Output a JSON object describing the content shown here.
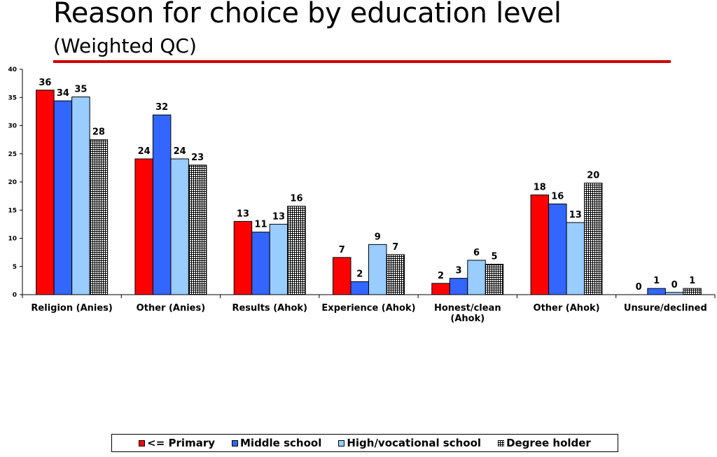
{
  "title": "Reason for choice by education level",
  "subtitle": "(Weighted QC)",
  "colors": {
    "title_rule": "#cc0000",
    "primary": "#ff0000",
    "middle": "#3366ff",
    "high": "#99ccff",
    "degree": "#ffffff"
  },
  "chart_data": {
    "type": "bar",
    "title": "Reason for choice by education level",
    "subtitle": "(Weighted QC)",
    "categories": [
      [
        "Religion (Anies)"
      ],
      [
        "Other (Anies)"
      ],
      [
        "Results (Ahok)"
      ],
      [
        "Experience (Ahok)"
      ],
      [
        "Honest/clean",
        "(Ahok)"
      ],
      [
        "Other (Ahok)"
      ],
      [
        "Unsure/declined"
      ]
    ],
    "series": [
      {
        "name": "<= Primary",
        "color": "#ff0000",
        "pattern": "solid",
        "values": [
          36.3,
          24.1,
          13.0,
          6.6,
          2.0,
          17.7,
          0.0
        ],
        "labels": [
          "36",
          "24",
          "13",
          "7",
          "2",
          "18",
          "0"
        ]
      },
      {
        "name": "Middle school",
        "color": "#3366ff",
        "pattern": "solid",
        "values": [
          34.4,
          31.9,
          11.1,
          2.3,
          2.9,
          16.1,
          1.1
        ],
        "labels": [
          "34",
          "32",
          "11",
          "2",
          "3",
          "16",
          "1"
        ]
      },
      {
        "name": "High/vocational school",
        "color": "#99ccff",
        "pattern": "solid",
        "values": [
          35.1,
          24.1,
          12.5,
          8.9,
          6.1,
          12.8,
          0.4
        ],
        "labels": [
          "35",
          "24",
          "13",
          "9",
          "6",
          "13",
          "0"
        ]
      },
      {
        "name": "Degree holder",
        "color": "#ffffff",
        "pattern": "grid",
        "values": [
          27.5,
          23.0,
          15.7,
          7.1,
          5.4,
          19.8,
          1.1
        ],
        "labels": [
          "28",
          "23",
          "16",
          "7",
          "5",
          "20",
          "1"
        ]
      }
    ],
    "yticks": [
      0,
      5,
      10,
      15,
      20,
      25,
      30,
      35,
      40
    ],
    "ylim": [
      0,
      40
    ],
    "xlabel": "",
    "ylabel": "",
    "grid": false,
    "legend_position": "bottom"
  }
}
